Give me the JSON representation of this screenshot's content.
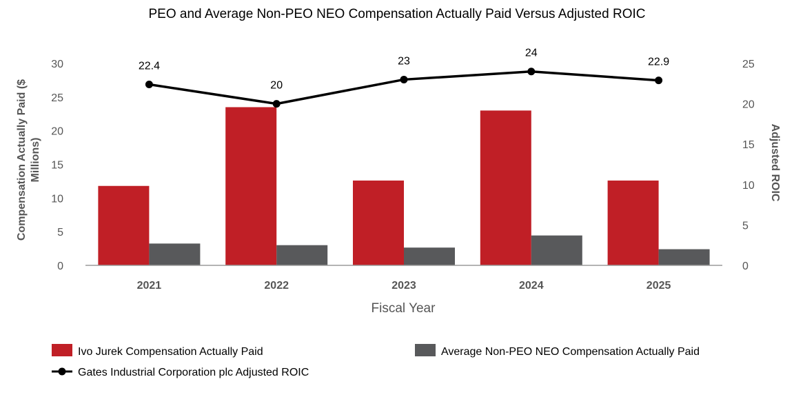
{
  "chart_data": {
    "type": "bar",
    "title": "PEO and Average Non-PEO NEO Compensation Actually Paid Versus Adjusted ROIC",
    "xlabel": "Fiscal Year",
    "ylabel_lines": [
      "Compensation Actually Paid ($",
      "Millions)"
    ],
    "y2label": "Adjusted ROIC",
    "categories": [
      "2021",
      "2022",
      "2023",
      "2024",
      "2025"
    ],
    "ylim": [
      0,
      30
    ],
    "yticks": [
      "0",
      "5",
      "10",
      "15",
      "20",
      "25",
      "30"
    ],
    "y2lim": [
      0,
      25
    ],
    "y2ticks": [
      "0",
      "5",
      "10",
      "15",
      "20",
      "25"
    ],
    "series": [
      {
        "name": "Ivo Jurek Compensation Actually Paid",
        "type": "bar",
        "axis": "left",
        "color": "#C01F26",
        "values": [
          11.8,
          23.5,
          12.6,
          23.0,
          12.6
        ]
      },
      {
        "name": "Average Non-PEO NEO Compensation Actually Paid",
        "type": "bar",
        "axis": "right",
        "color": "#58595B",
        "values": [
          2.7,
          2.5,
          2.2,
          3.7,
          2.0
        ]
      },
      {
        "name": "Gates Industrial Corporation plc Adjusted ROIC",
        "type": "line",
        "axis": "right",
        "color": "#000000",
        "values": [
          22.4,
          20,
          23,
          24,
          22.9
        ],
        "labels": [
          "22.4",
          "20",
          "23",
          "24",
          "22.9"
        ]
      }
    ],
    "legend": "bottom",
    "grid": false
  }
}
